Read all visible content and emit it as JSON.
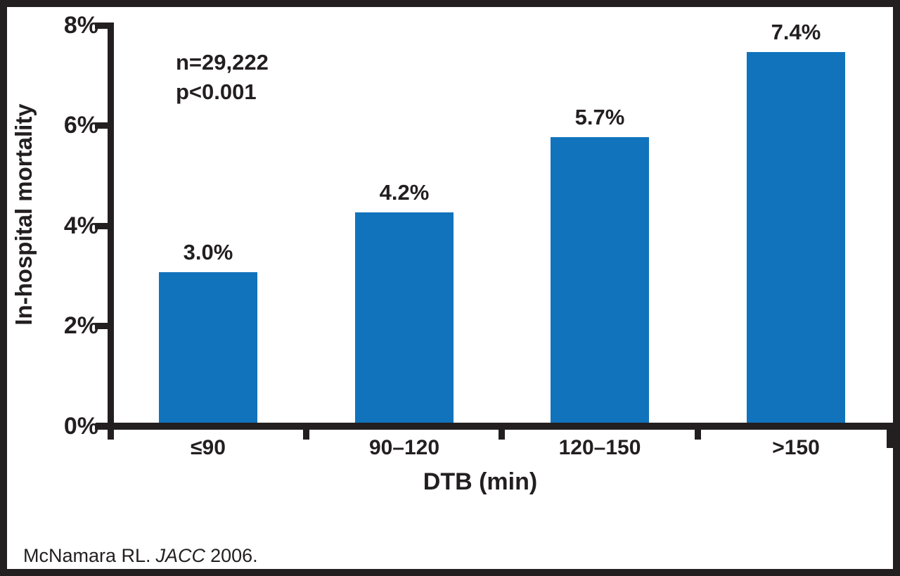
{
  "chart_data": {
    "type": "bar",
    "title": "",
    "categories": [
      "≤90",
      "90–120",
      "120–150",
      ">150"
    ],
    "values": [
      3.0,
      4.2,
      5.7,
      7.4
    ],
    "value_labels": [
      "3.0%",
      "4.2%",
      "5.7%",
      "7.4%"
    ],
    "xlabel": "DTB (min)",
    "ylabel": "In-hospital mortality",
    "ylim": [
      0,
      8
    ],
    "ytick_labels": [
      "0%",
      "2%",
      "4%",
      "6%",
      "8%"
    ],
    "grid": false,
    "legend_position": "none",
    "bar_color": "#1173bc",
    "axis_color": "#231f20",
    "annotations": {
      "sample_size": "n=29,222",
      "p_value": "p<0.001"
    }
  },
  "citation": {
    "author": "McNamara RL.",
    "journal": "JACC",
    "year": "2006."
  }
}
